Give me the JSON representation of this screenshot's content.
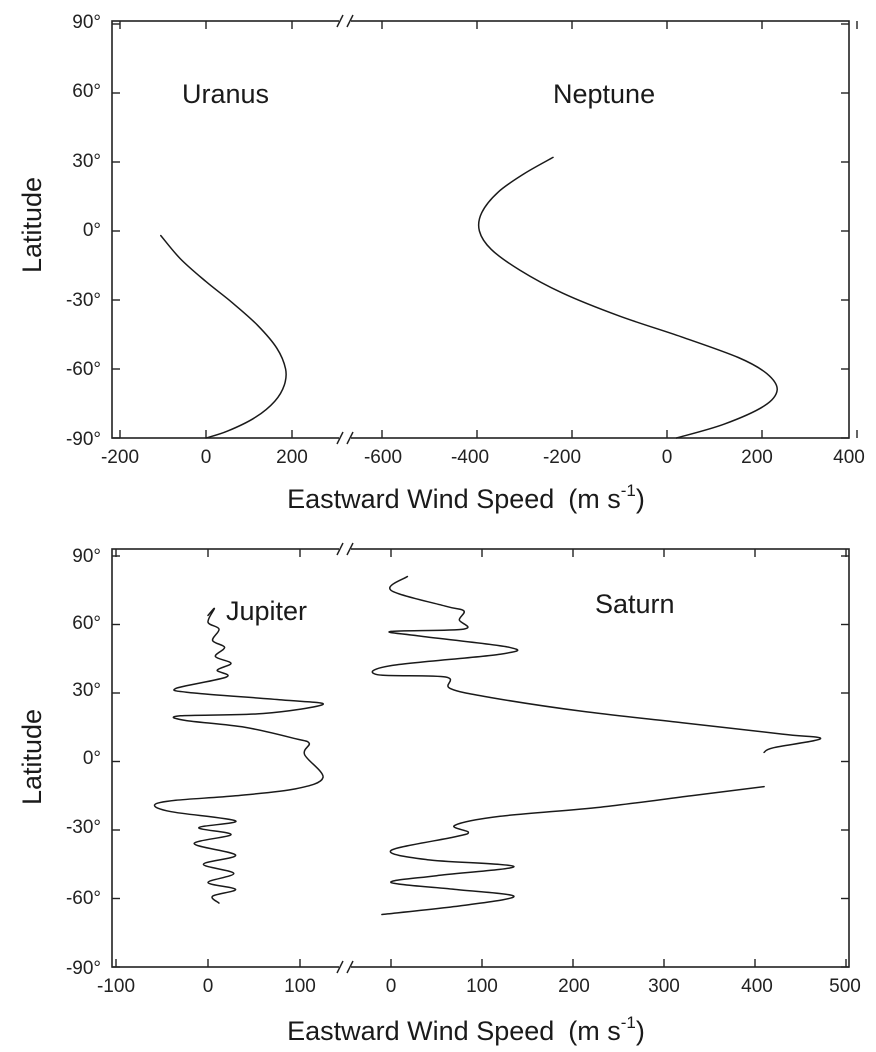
{
  "chart_data": [
    {
      "type": "line",
      "panel": "top",
      "title": "",
      "xlabel": "Eastward Wind Speed",
      "xunit": "(m s",
      "xunit_exp": "-1",
      "xunit_close": ")",
      "ylabel": "Latitude",
      "ylim": [
        -90,
        90
      ],
      "yticks": [
        "90°",
        "60°",
        "30°",
        "0°",
        "-30°",
        "-60°",
        "-90°"
      ],
      "axis_break": "broken x axis",
      "segments": [
        {
          "xlim": [
            -200,
            280
          ],
          "xticks": [
            "-200",
            "0",
            "200"
          ],
          "label": "Uranus",
          "series": [
            {
              "name": "Uranus",
              "x": [
                -105,
                -60,
                0,
                60,
                120,
                165,
                185,
                182,
                160,
                115,
                50,
                0
              ],
              "y": [
                -2,
                -12,
                -22,
                -31,
                -41,
                -51,
                -60,
                -67,
                -74,
                -81,
                -87,
                -90
              ]
            }
          ]
        },
        {
          "xlim": [
            -660,
            400
          ],
          "xticks": [
            "-600",
            "-400",
            "-200",
            "0",
            "200",
            "400"
          ],
          "label": "Neptune",
          "series": [
            {
              "name": "Neptune",
              "x": [
                -240,
                -300,
                -355,
                -390,
                -395,
                -370,
                -310,
                -220,
                -100,
                30,
                150,
                210,
                232,
                205,
                120,
                20
              ],
              "y": [
                32,
                25,
                17,
                8,
                0,
                -8,
                -17,
                -27,
                -37,
                -46,
                -55,
                -62,
                -69,
                -76,
                -84,
                -90
              ]
            }
          ]
        }
      ]
    },
    {
      "type": "line",
      "panel": "bottom",
      "title": "",
      "xlabel": "Eastward Wind Speed",
      "xunit": "(m s",
      "xunit_exp": "-1",
      "xunit_close": ")",
      "ylabel": "Latitude",
      "ylim": [
        -90,
        90
      ],
      "yticks": [
        "90°",
        "60°",
        "30°",
        "0°",
        "-30°",
        "-60°",
        "-90°"
      ],
      "axis_break": "broken x axis",
      "segments": [
        {
          "xlim": [
            -100,
            150
          ],
          "xticks": [
            "-100",
            "0",
            "100"
          ],
          "label": "Jupiter",
          "series": [
            {
              "name": "Jupiter",
              "x": [
                0,
                7,
                0,
                12,
                5,
                18,
                8,
                25,
                10,
                20,
                -35,
                -15,
                80,
                125,
                60,
                -30,
                -25,
                40,
                95,
                110,
                105,
                125,
                95,
                30,
                -35,
                -58,
                -40,
                30,
                -10,
                25,
                -15,
                30,
                -5,
                28,
                0,
                30,
                5,
                12
              ],
              "y": [
                64,
                67,
                61,
                58,
                53,
                50,
                46,
                43,
                40,
                37,
                32,
                30,
                27,
                25,
                21,
                20,
                18,
                15,
                10,
                8,
                3,
                -7,
                -12,
                -15,
                -17,
                -19,
                -22,
                -26,
                -29,
                -32,
                -36,
                -41,
                -45,
                -49,
                -53,
                -56,
                -59,
                -62
              ]
            }
          ]
        },
        {
          "xlim": [
            -40,
            500
          ],
          "xticks": [
            "0",
            "100",
            "200",
            "300",
            "400",
            "500"
          ],
          "label": "Saturn",
          "series": [
            {
              "name": "Saturn",
              "x": [
                18,
                0,
                60,
                80,
                75,
                80,
                0,
                30,
                130,
                120,
                0,
                -15,
                60,
                65,
                110,
                210,
                320,
                430,
                472,
                420,
                410
              ],
              "y": [
                81,
                75,
                68,
                66,
                62,
                58,
                57,
                55,
                50,
                47,
                42,
                38,
                37,
                32,
                28,
                22,
                17,
                12,
                10,
                6,
                4
              ]
            },
            {
              "name": "Saturn",
              "x": [
                410,
                330,
                230,
                120,
                70,
                85,
                70,
                0,
                40,
                135,
                50,
                0,
                70,
                135,
                80,
                -10
              ],
              "y": [
                -11,
                -15,
                -20,
                -24,
                -28,
                -31,
                -33,
                -39,
                -43,
                -46,
                -50,
                -53,
                -56,
                -59,
                -63,
                -67
              ]
            }
          ]
        }
      ]
    }
  ]
}
